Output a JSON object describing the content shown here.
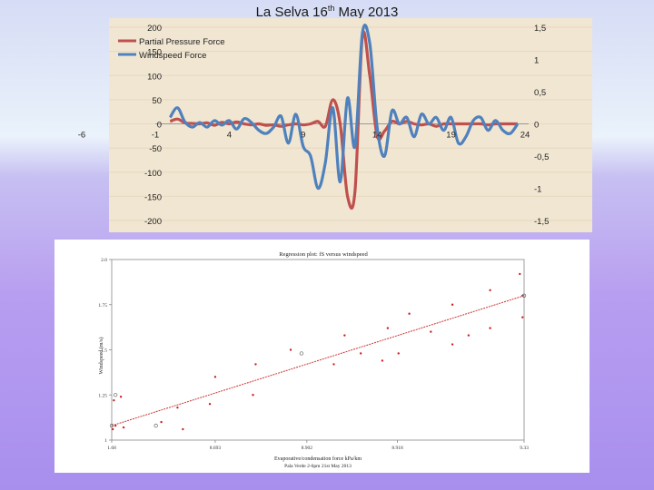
{
  "slide": {
    "title_main": "La Selva 16",
    "title_sup": "th",
    "title_rest": " May 2013"
  },
  "colors": {
    "plot_bg": "#f1e6d2",
    "partial_pressure": "#c0504d",
    "windspeed": "#4f81bd",
    "regression_line": "#cc3333",
    "regression_points": "#cc2222"
  },
  "chart_data": [
    {
      "type": "line",
      "title": "",
      "legend": [
        "Partial Pressure Force",
        "Windspeed Force"
      ],
      "legend_position": "top-left",
      "x_ticks": [
        "-6",
        "-1",
        "4",
        "9",
        "14",
        "19",
        "24"
      ],
      "x_tick_values": [
        -6,
        -1,
        4,
        9,
        14,
        19,
        24
      ],
      "y_left_ticks": [
        "200",
        "150",
        "100",
        "50",
        "0",
        "-50",
        "-100",
        "-150",
        "-200"
      ],
      "y_left_tick_values": [
        200,
        150,
        100,
        50,
        0,
        -50,
        -100,
        -150,
        -200
      ],
      "y_right_ticks": [
        "1,5",
        "1",
        "0,5",
        "0",
        "-0,5",
        "-1",
        "-1,5"
      ],
      "y_right_tick_values": [
        1.5,
        1,
        0.5,
        0,
        -0.5,
        -1,
        -1.5
      ],
      "ylim_left": [
        -200,
        200
      ],
      "ylim_right": [
        -1.5,
        1.5
      ],
      "x_range_drawn": [
        -1,
        24
      ],
      "series": [
        {
          "name": "Partial Pressure Force",
          "axis": "left",
          "x": [
            0,
            0.5,
            1,
            1.5,
            2,
            2.5,
            3,
            3.5,
            4,
            4.5,
            5,
            5.5,
            6,
            6.5,
            7,
            7.5,
            8,
            8.5,
            9,
            9.5,
            10,
            10.5,
            11,
            11.5,
            12,
            12.5,
            13,
            13.5,
            14,
            14.5,
            15,
            15.5,
            16,
            16.5,
            17,
            17.5,
            18,
            18.5,
            19,
            19.5,
            20,
            20.5,
            21,
            21.5,
            22,
            22.5,
            23,
            23.5
          ],
          "values": [
            5,
            10,
            2,
            1,
            0,
            2,
            -3,
            3,
            0,
            4,
            0,
            -2,
            0,
            -3,
            -2,
            -5,
            -2,
            0,
            -2,
            0,
            5,
            -5,
            50,
            0,
            -150,
            -140,
            180,
            100,
            -25,
            -15,
            5,
            0,
            5,
            0,
            -2,
            0,
            -5,
            0,
            0,
            0,
            0,
            0,
            0,
            -2,
            0,
            0,
            0,
            0
          ]
        },
        {
          "name": "Windspeed Force",
          "axis": "right",
          "x": [
            0,
            0.5,
            1,
            1.5,
            2,
            2.5,
            3,
            3.5,
            4,
            4.5,
            5,
            5.5,
            6,
            6.5,
            7,
            7.5,
            8,
            8.5,
            9,
            9.5,
            10,
            10.5,
            11,
            11.5,
            12,
            12.5,
            13,
            13.5,
            14,
            14.5,
            15,
            15.5,
            16,
            16.5,
            17,
            17.5,
            18,
            18.5,
            19,
            19.5,
            20,
            20.5,
            21,
            21.5,
            22,
            22.5,
            23,
            23.5
          ],
          "values": [
            0.1,
            0.25,
            0.03,
            -0.05,
            0.02,
            -0.05,
            0.05,
            -0.02,
            0.05,
            -0.08,
            0.08,
            0.02,
            -0.1,
            -0.15,
            -0.05,
            0.12,
            -0.3,
            0.15,
            -0.35,
            -0.5,
            -1.0,
            -0.6,
            0.25,
            -0.9,
            0.4,
            -0.35,
            1.4,
            1.25,
            -0.05,
            -0.5,
            0.2,
            0.0,
            0.1,
            -0.2,
            0.15,
            0.0,
            0.1,
            -0.1,
            0.1,
            -0.3,
            -0.2,
            0.05,
            0.1,
            -0.1,
            0.05,
            -0.1,
            -0.15,
            0.0
          ]
        }
      ]
    },
    {
      "type": "scatter",
      "title": "Regression plot: fS versus windspeed",
      "xlabel": "Evaporative/condensation force kPa/km",
      "subcaption": "Pala Verde 2-6pm 21st May 2013",
      "ylabel": "Windspeed (m/s)",
      "x_ticks": [
        "1.68",
        "8.693",
        "8.902",
        "8.918",
        "9.33"
      ],
      "y_ticks": [
        "2.0",
        "1.75",
        "1.5",
        "1.25",
        "1"
      ],
      "xlim": [
        1.68,
        9.33
      ],
      "ylim": [
        1,
        2
      ],
      "regression_line": {
        "x": [
          1.68,
          9.33
        ],
        "y": [
          1.08,
          1.8
        ]
      },
      "points": [
        {
          "x": 1.7,
          "y": 1.06
        },
        {
          "x": 1.75,
          "y": 1.08
        },
        {
          "x": 1.9,
          "y": 1.07
        },
        {
          "x": 1.72,
          "y": 1.22
        },
        {
          "x": 1.85,
          "y": 1.24
        },
        {
          "x": 2.6,
          "y": 1.1
        },
        {
          "x": 2.9,
          "y": 1.18
        },
        {
          "x": 3.0,
          "y": 1.06
        },
        {
          "x": 3.5,
          "y": 1.2
        },
        {
          "x": 3.6,
          "y": 1.35
        },
        {
          "x": 4.3,
          "y": 1.25
        },
        {
          "x": 4.35,
          "y": 1.42
        },
        {
          "x": 5.0,
          "y": 1.5
        },
        {
          "x": 5.8,
          "y": 1.42
        },
        {
          "x": 6.0,
          "y": 1.58
        },
        {
          "x": 6.3,
          "y": 1.48
        },
        {
          "x": 6.7,
          "y": 1.44
        },
        {
          "x": 6.8,
          "y": 1.62
        },
        {
          "x": 7.0,
          "y": 1.48
        },
        {
          "x": 7.2,
          "y": 1.7
        },
        {
          "x": 7.6,
          "y": 1.6
        },
        {
          "x": 8.0,
          "y": 1.75
        },
        {
          "x": 8.0,
          "y": 1.53
        },
        {
          "x": 8.3,
          "y": 1.58
        },
        {
          "x": 8.7,
          "y": 1.83
        },
        {
          "x": 8.7,
          "y": 1.62
        },
        {
          "x": 9.25,
          "y": 1.92
        },
        {
          "x": 9.3,
          "y": 1.8
        },
        {
          "x": 9.3,
          "y": 1.68
        }
      ],
      "hollow_points": [
        {
          "x": 1.75,
          "y": 1.25
        },
        {
          "x": 1.68,
          "y": 1.08
        },
        {
          "x": 2.5,
          "y": 1.08
        },
        {
          "x": 5.2,
          "y": 1.48
        },
        {
          "x": 9.33,
          "y": 1.8
        }
      ]
    }
  ]
}
